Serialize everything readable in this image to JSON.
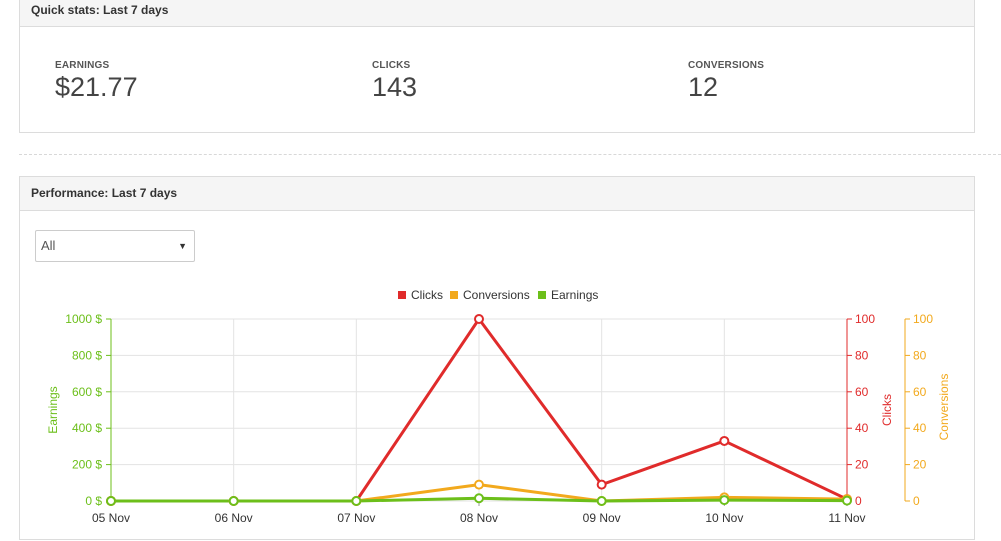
{
  "quick_stats": {
    "title": "Quick stats: Last 7 days",
    "stats": [
      {
        "label": "EARNINGS",
        "value": "$21.77"
      },
      {
        "label": "CLICKS",
        "value": "143"
      },
      {
        "label": "CONVERSIONS",
        "value": "12"
      }
    ]
  },
  "performance": {
    "title": "Performance: Last 7 days",
    "filter": {
      "selected": "All"
    }
  },
  "colors": {
    "clicks": "#e02b2b",
    "conversions": "#f2a91d",
    "earnings": "#6cbf1a",
    "grid": "#e3e3e3"
  },
  "chart_data": {
    "type": "line",
    "categories": [
      "05 Nov",
      "06 Nov",
      "07 Nov",
      "08 Nov",
      "09 Nov",
      "10 Nov",
      "11 Nov"
    ],
    "legend": [
      "Clicks",
      "Conversions",
      "Earnings"
    ],
    "series": [
      {
        "name": "Clicks",
        "axis": "clicks",
        "values": [
          0,
          0,
          0,
          100,
          9,
          33,
          1
        ]
      },
      {
        "name": "Conversions",
        "axis": "conversions",
        "values": [
          0,
          0,
          0,
          9,
          0,
          2,
          1
        ]
      },
      {
        "name": "Earnings",
        "axis": "earnings",
        "values": [
          0,
          0,
          0,
          15,
          0,
          5,
          2
        ]
      }
    ],
    "axes": {
      "earnings": {
        "label": "Earnings",
        "ylim": [
          0,
          1000
        ],
        "ticks": [
          "0 $",
          "200 $",
          "400 $",
          "600 $",
          "800 $",
          "1000 $"
        ]
      },
      "clicks": {
        "label": "Clicks",
        "ylim": [
          0,
          100
        ],
        "ticks": [
          "0",
          "20",
          "40",
          "60",
          "80",
          "100"
        ]
      },
      "conversions": {
        "label": "Conversions",
        "ylim": [
          0,
          100
        ],
        "ticks": [
          "0",
          "20",
          "40",
          "60",
          "80",
          "100"
        ]
      }
    },
    "legend_position": "top-center",
    "grid": true
  }
}
